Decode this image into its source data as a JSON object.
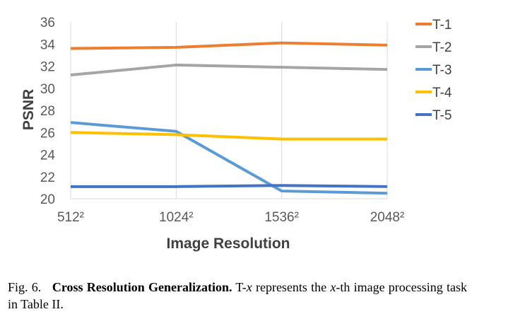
{
  "chart_data": {
    "type": "line",
    "title": "",
    "xlabel": "Image Resolution",
    "ylabel": "PSNR",
    "categories": [
      "512²",
      "1024²",
      "1536²",
      "2048²"
    ],
    "ylim": [
      20,
      36
    ],
    "yticks": [
      20,
      22,
      24,
      26,
      28,
      30,
      32,
      34,
      36
    ],
    "grid": "vertical",
    "legend": "right",
    "series": [
      {
        "name": "T-1",
        "color": "#ED7D31",
        "values": [
          33.6,
          33.7,
          34.1,
          33.9
        ]
      },
      {
        "name": "T-2",
        "color": "#A5A5A5",
        "values": [
          31.2,
          32.1,
          31.9,
          31.7
        ]
      },
      {
        "name": "T-3",
        "color": "#5B9BD5",
        "values": [
          26.9,
          26.1,
          20.7,
          20.5
        ]
      },
      {
        "name": "T-4",
        "color": "#FFC000",
        "values": [
          26.0,
          25.8,
          25.4,
          25.4
        ]
      },
      {
        "name": "T-5",
        "color": "#4472C4",
        "values": [
          21.1,
          21.1,
          21.2,
          21.1
        ]
      }
    ]
  },
  "caption": {
    "label": "Fig. 6.",
    "title": "Cross Resolution Generalization.",
    "t_prefix": "T-",
    "x_var": "x",
    "text1": "represents the",
    "text2": "-th image processing task in Table II."
  }
}
